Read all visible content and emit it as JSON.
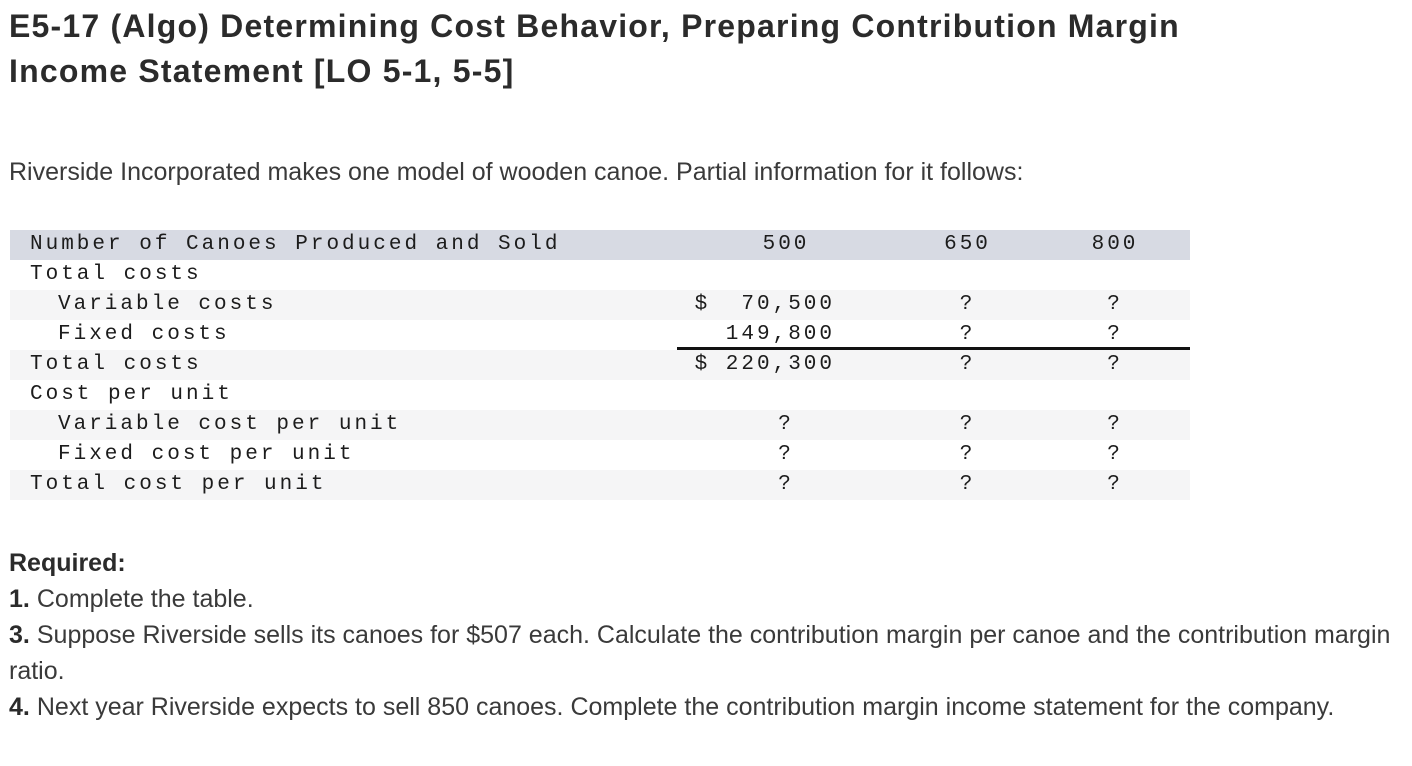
{
  "header": {
    "lines": [
      "E5-17 (Algo) Determining Cost Behavior, Preparing Contribution Margin",
      "Income Statement [LO 5-1, 5-5]"
    ]
  },
  "intro": "Riverside Incorporated makes one model of wooden canoe. Partial information for it follows:",
  "cost_table": {
    "header": {
      "label": "Number of Canoes Produced and Sold",
      "values": [
        "500",
        "650",
        "800"
      ]
    },
    "rows": [
      {
        "label": "Total costs",
        "values": [
          "",
          "",
          ""
        ]
      },
      {
        "label": "Variable costs",
        "values": [
          "$  70,500",
          "?",
          "?"
        ]
      },
      {
        "label": "Fixed costs",
        "values": [
          "149,800",
          "?",
          "?"
        ]
      },
      {
        "label": "Total costs",
        "values": [
          "$ 220,300",
          "?",
          "?"
        ]
      },
      {
        "label": "Cost per unit",
        "values": [
          "",
          "",
          ""
        ]
      },
      {
        "label": "Variable cost per unit",
        "values": [
          "?",
          "?",
          "?"
        ]
      },
      {
        "label": "Fixed cost per unit",
        "values": [
          "?",
          "?",
          "?"
        ]
      },
      {
        "label": "Total cost per unit",
        "values": [
          "?",
          "?",
          "?"
        ]
      }
    ]
  },
  "required": {
    "heading": "Required:",
    "items": [
      {
        "num": "1.",
        "text": "Complete the table."
      },
      {
        "num": "3.",
        "text": "Suppose Riverside sells its canoes for $507 each. Calculate the contribution margin per canoe and the contribution margin ratio."
      },
      {
        "num": "4.",
        "text": "Next year Riverside expects to sell 850 canoes. Complete the contribution margin income statement for the company."
      }
    ]
  },
  "colors": {
    "table_header_bg": "#d7dae3",
    "table_shade_bg": "#f5f5f6",
    "rule": "#111111",
    "heading_text": "#2b2b2b",
    "body_text": "#3a3a3a"
  }
}
